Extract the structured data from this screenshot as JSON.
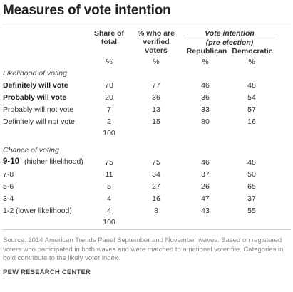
{
  "title": "Measures of vote intention",
  "columns": {
    "share": [
      "Share of",
      "total"
    ],
    "verified": [
      "% who are",
      "verified",
      "voters"
    ],
    "vote_intention": [
      "Vote intention",
      "(pre-election)"
    ],
    "republican": "Republican",
    "democratic": "Democratic"
  },
  "pct": "%",
  "section1": {
    "title": "Likelihood of voting",
    "rows": [
      {
        "label": "Definitely will vote",
        "bold": true,
        "share": "70",
        "verified": "77",
        "rep": "46",
        "dem": "48"
      },
      {
        "label": "Probably will vote",
        "bold": true,
        "share": "20",
        "verified": "36",
        "rep": "36",
        "dem": "54"
      },
      {
        "label": "Probably will not vote",
        "bold": false,
        "share": "7",
        "verified": "13",
        "rep": "33",
        "dem": "57"
      },
      {
        "label": "Definitely will not vote",
        "bold": false,
        "share": "2",
        "verified": "15",
        "rep": "80",
        "dem": "16"
      }
    ],
    "total": "100"
  },
  "section2": {
    "title": "Chance of voting",
    "rows": [
      {
        "label_main": "9-10",
        "label_sub": "(higher likelihood)",
        "bold": true,
        "share": "75",
        "verified": "75",
        "rep": "46",
        "dem": "48"
      },
      {
        "label_main": "7-8",
        "label_sub": "",
        "bold": false,
        "share": "11",
        "verified": "34",
        "rep": "37",
        "dem": "50"
      },
      {
        "label_main": "5-6",
        "label_sub": "",
        "bold": false,
        "share": "5",
        "verified": "27",
        "rep": "26",
        "dem": "65"
      },
      {
        "label_main": "3-4",
        "label_sub": "",
        "bold": false,
        "share": "4",
        "verified": "16",
        "rep": "47",
        "dem": "37"
      },
      {
        "label_main": "1-2 (lower likelihood)",
        "label_sub": "",
        "bold": false,
        "share": "4",
        "verified": "8",
        "rep": "43",
        "dem": "55"
      }
    ],
    "total": "100"
  },
  "source": "Source: 2014 American Trends Panel September and November waves. Based on registered voters who participated in both waves and were matched to a national voter file. Categories in bold contribute to the likely voter index.",
  "brand": "PEW RESEARCH CENTER"
}
